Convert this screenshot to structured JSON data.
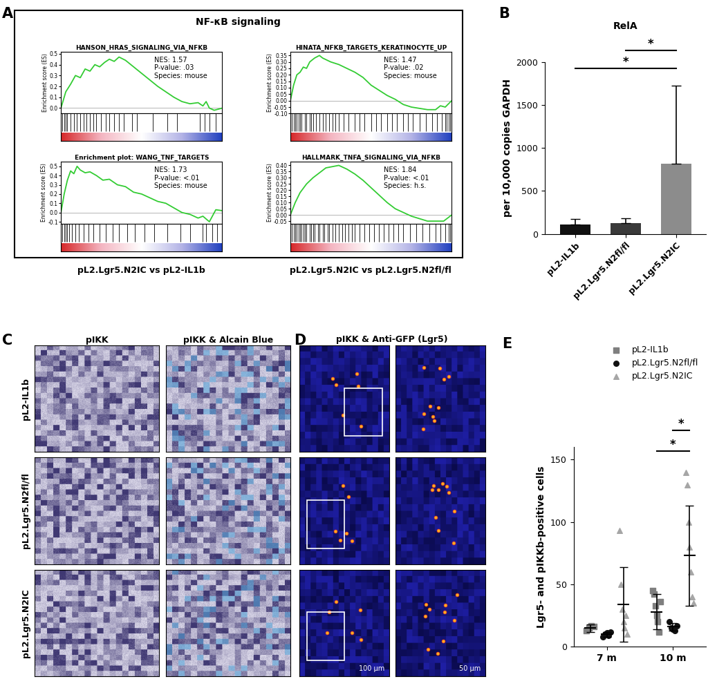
{
  "panel_A": {
    "panel": "A",
    "title": "NF-κB signaling",
    "comparisons": [
      "pL2.Lgr5.N2IC vs pL2-IL1b",
      "pL2.Lgr5.N2IC vs pL2.Lgr5.N2fl/fl"
    ]
  },
  "chart_data": [
    {
      "panel": "A",
      "type": "line",
      "title": "HANSON_HRAS_SIGNALING_VIA_NFKB",
      "ylabel": "Enrichment score (ES)",
      "color": "#33cc33",
      "tick_labels": "y",
      "x": [
        0,
        3,
        6,
        9,
        12,
        15,
        18,
        21,
        24,
        27,
        30,
        33,
        36,
        40,
        45,
        50,
        55,
        60,
        65,
        70,
        75,
        80,
        85,
        88,
        90,
        92,
        95,
        100
      ],
      "values": [
        0,
        0.15,
        0.22,
        0.3,
        0.28,
        0.36,
        0.34,
        0.4,
        0.38,
        0.42,
        0.45,
        0.43,
        0.47,
        0.44,
        0.38,
        0.32,
        0.26,
        0.2,
        0.15,
        0.1,
        0.06,
        0.04,
        0.05,
        0.02,
        0.06,
        0.0,
        -0.02,
        0.0
      ],
      "xlim": [
        0,
        100
      ],
      "ylim": [
        -0.05,
        0.52
      ],
      "yticks": [
        0.0,
        0.1,
        0.2,
        0.3,
        0.4,
        0.5
      ],
      "hits": [
        1,
        2,
        3,
        4,
        6,
        8,
        10,
        12,
        14,
        16,
        18,
        20,
        22,
        25,
        28,
        30,
        33,
        36,
        39,
        44,
        47,
        57,
        66,
        72,
        86,
        89,
        92,
        96
      ],
      "annotations": [
        "NES: 1.57",
        "P-value: .03",
        "Species: mouse"
      ]
    },
    {
      "panel": "A",
      "type": "line",
      "title": "HINATA_NFKB_TARGETS_KERATINOCYTE_UP",
      "ylabel": "Enrichment score (ES)",
      "color": "#33cc33",
      "tick_labels": "y",
      "x": [
        0,
        2,
        4,
        6,
        8,
        10,
        12,
        15,
        18,
        20,
        25,
        30,
        35,
        40,
        45,
        50,
        55,
        60,
        65,
        70,
        75,
        80,
        85,
        90,
        93,
        96,
        100
      ],
      "values": [
        0,
        0.12,
        0.2,
        0.22,
        0.26,
        0.25,
        0.3,
        0.33,
        0.35,
        0.33,
        0.3,
        0.28,
        0.25,
        0.22,
        0.18,
        0.12,
        0.08,
        0.04,
        0.01,
        -0.03,
        -0.05,
        -0.06,
        -0.07,
        -0.07,
        -0.04,
        -0.05,
        0.0
      ],
      "xlim": [
        0,
        100
      ],
      "ylim": [
        -0.1,
        0.38
      ],
      "yticks": [
        {
          "value": -0.1,
          "label": "-0.10"
        },
        {
          "value": -0.05,
          "label": "-0.05"
        },
        {
          "value": 0,
          "label": "0.00"
        },
        {
          "value": 0.05,
          "label": "0.05"
        },
        {
          "value": 0.1,
          "label": "0.10"
        },
        {
          "value": 0.15,
          "label": "0.15"
        },
        {
          "value": 0.2,
          "label": "0.20"
        },
        {
          "value": 0.25,
          "label": "0.25"
        },
        {
          "value": 0.3,
          "label": "0.30"
        },
        {
          "value": 0.35,
          "label": "0.35"
        }
      ],
      "hits": [
        1,
        2,
        3,
        4,
        5,
        6,
        7,
        9,
        10,
        12,
        13,
        14,
        16,
        18,
        20,
        22,
        24,
        26,
        28,
        30,
        33,
        36,
        40,
        43,
        46,
        50,
        53,
        56,
        60,
        63,
        66,
        70,
        73,
        76,
        80,
        84,
        88,
        91,
        94,
        96,
        97,
        98,
        99
      ],
      "annotations": [
        "NES: 1.47",
        "P-value: .02",
        "Species: mouse"
      ]
    },
    {
      "panel": "A",
      "type": "line",
      "title": "Enrichment plot: WANG_TNF_TARGETS",
      "ylabel": "Enrichment score (ES)",
      "color": "#33cc33",
      "tick_labels": "y",
      "x": [
        0,
        2,
        4,
        6,
        8,
        10,
        12,
        15,
        18,
        22,
        26,
        30,
        35,
        40,
        45,
        50,
        55,
        60,
        65,
        70,
        75,
        80,
        85,
        88,
        92,
        96,
        100
      ],
      "values": [
        0,
        0.2,
        0.35,
        0.45,
        0.42,
        0.5,
        0.46,
        0.43,
        0.44,
        0.4,
        0.35,
        0.36,
        0.3,
        0.28,
        0.22,
        0.2,
        0.16,
        0.12,
        0.1,
        0.05,
        0.0,
        -0.02,
        -0.06,
        -0.04,
        -0.1,
        0.03,
        0.02
      ],
      "xlim": [
        0,
        100
      ],
      "ylim": [
        -0.12,
        0.55
      ],
      "yticks": [
        -0.1,
        0.0,
        0.1,
        0.2,
        0.3,
        0.4,
        0.5
      ],
      "hits": [
        1,
        2,
        3,
        4,
        5,
        7,
        9,
        11,
        14,
        17,
        20,
        24,
        28,
        32,
        36,
        41,
        46,
        52,
        58,
        66,
        74,
        80,
        88,
        90,
        94,
        97
      ],
      "annotations": [
        "NES: 1.73",
        "P-value: <.01",
        "Species: mouse"
      ]
    },
    {
      "panel": "A",
      "type": "line",
      "title": "HALLMARK_TNFA_SIGNALING_VIA_NFKB",
      "ylabel": "Enrichment score (ES)",
      "color": "#33cc33",
      "tick_labels": "y",
      "x": [
        0,
        3,
        6,
        10,
        14,
        18,
        22,
        26,
        30,
        35,
        40,
        45,
        50,
        55,
        60,
        65,
        70,
        75,
        80,
        85,
        90,
        95,
        100
      ],
      "values": [
        0,
        0.1,
        0.18,
        0.25,
        0.3,
        0.34,
        0.38,
        0.39,
        0.4,
        0.37,
        0.33,
        0.28,
        0.22,
        0.16,
        0.1,
        0.05,
        0.02,
        -0.01,
        -0.03,
        -0.05,
        -0.05,
        -0.05,
        0.0
      ],
      "xlim": [
        0,
        100
      ],
      "ylim": [
        -0.07,
        0.43
      ],
      "yticks": [
        {
          "value": -0.05,
          "label": "-0.05"
        },
        {
          "value": 0,
          "label": "0.00"
        },
        {
          "value": 0.05,
          "label": "0.05"
        },
        {
          "value": 0.1,
          "label": "0.10"
        },
        {
          "value": 0.15,
          "label": "0.15"
        },
        {
          "value": 0.2,
          "label": "0.20"
        },
        {
          "value": 0.25,
          "label": "0.25"
        },
        {
          "value": 0.3,
          "label": "0.30"
        },
        {
          "value": 0.35,
          "label": "0.35"
        },
        {
          "value": 0.4,
          "label": "0.40"
        }
      ],
      "hits": [
        1,
        2,
        3,
        4,
        5,
        6,
        7,
        8,
        9,
        10,
        12,
        13,
        14,
        15,
        17,
        18,
        20,
        21,
        23,
        24,
        26,
        28,
        30,
        32,
        34,
        36,
        38,
        40,
        43,
        46,
        49,
        52,
        55,
        58,
        61,
        64,
        67,
        70,
        74,
        78,
        82,
        86,
        90,
        93,
        96,
        98,
        99
      ],
      "annotations": [
        "NES: 1.84",
        "P-value: <.01",
        "Species: h.s."
      ]
    },
    {
      "panel": "B",
      "type": "bar",
      "title": "RelA",
      "ylabel": "per 10,000 copies GAPDH",
      "categories": [
        "pL2-IL1b",
        "pL2.Lgr5.N2fl/fl",
        "pL2.Lgr5.N2IC"
      ],
      "values": [
        110,
        125,
        820
      ],
      "errors": [
        65,
        60,
        900
      ],
      "colors": [
        "#111111",
        "#3a3a3a",
        "#8c8c8c"
      ],
      "ylim": [
        0,
        2000
      ],
      "yticks": [
        0,
        500,
        1000,
        1500,
        2000
      ],
      "significance": [
        {
          "pair": [
            0,
            2
          ],
          "label": "*"
        },
        {
          "pair": [
            1,
            2
          ],
          "label": "*"
        }
      ]
    },
    {
      "panel": "E",
      "type": "scatter",
      "ylabel": "Lgr5- and pIKKb-positive cells",
      "categories": [
        "7 m",
        "10 m"
      ],
      "ylim": [
        0,
        160
      ],
      "yticks": [
        0,
        50,
        100,
        150
      ],
      "legend": "upper right",
      "series": [
        {
          "name": "pL2-IL1b",
          "color": "#7f7f7f",
          "marker": "square",
          "values": [
            [
              13,
              15,
              17,
              16
            ],
            [
              45,
              42,
              33,
              25,
              20,
              12,
              36
            ]
          ],
          "mean": [
            15,
            28
          ],
          "error": [
            3,
            14
          ]
        },
        {
          "name": "pL2.Lgr5.N2fl/fl",
          "color": "#111111",
          "marker": "circle",
          "values": [
            [
              8,
              10,
              11,
              9,
              12
            ],
            [
              20,
              15,
              14,
              13,
              17
            ]
          ],
          "mean": [
            10,
            16
          ],
          "error": [
            2,
            3
          ]
        },
        {
          "name": "pL2.Lgr5.N2IC",
          "color": "#a6a6a6",
          "marker": "triangle",
          "values": [
            [
              93,
              50,
              30,
              20,
              15,
              25,
              10
            ],
            [
              140,
              130,
              100,
              80,
              60,
              40,
              35
            ]
          ],
          "mean": [
            34,
            73
          ],
          "error": [
            30,
            40
          ]
        }
      ],
      "significance": [
        {
          "category": "10 m",
          "pair": [
            0,
            2
          ],
          "label": "*"
        },
        {
          "category": "10 m",
          "pair": [
            1,
            2
          ],
          "label": "*"
        }
      ]
    }
  ],
  "images": {
    "C": {
      "panel": "C",
      "columns": [
        "pIKK",
        "pIKK & Alcain Blue"
      ],
      "rows": [
        "pL2-IL1b",
        "pL2.Lgr5.N2fl/fl",
        "pL2.Lgr5.N2IC"
      ]
    },
    "D": {
      "panel": "D",
      "title": "pIKK & Anti-GFP (Lgr5)",
      "scale_bars": [
        "100 µm",
        "50 µm"
      ]
    }
  }
}
